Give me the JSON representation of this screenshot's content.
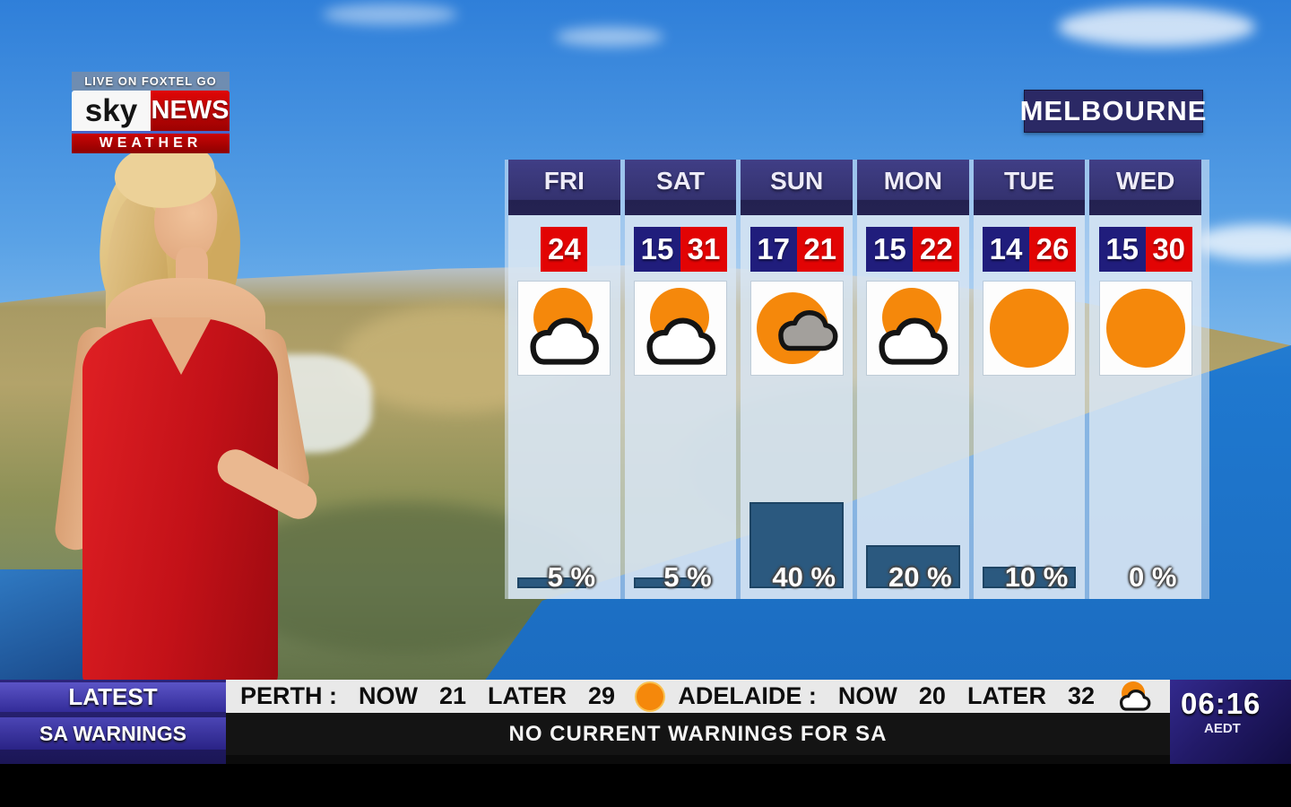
{
  "branding": {
    "live_banner": "LIVE ON FOXTEL GO",
    "logo_sky": "sky",
    "logo_news": "NEWS",
    "logo_weather": "WEATHER"
  },
  "location": "MELBOURNE",
  "forecast": {
    "days": [
      {
        "label": "FRI",
        "low": "",
        "high": "24",
        "icon": "partly-cloudy",
        "rain_label": "5 %",
        "rain_pct": 5
      },
      {
        "label": "SAT",
        "low": "15",
        "high": "31",
        "icon": "partly-cloudy",
        "rain_label": "5 %",
        "rain_pct": 5
      },
      {
        "label": "SUN",
        "low": "17",
        "high": "21",
        "icon": "sun-behind-cloud",
        "rain_label": "40 %",
        "rain_pct": 40
      },
      {
        "label": "MON",
        "low": "15",
        "high": "22",
        "icon": "partly-cloudy",
        "rain_label": "20 %",
        "rain_pct": 20
      },
      {
        "label": "TUE",
        "low": "14",
        "high": "26",
        "icon": "sunny",
        "rain_label": "10 %",
        "rain_pct": 10
      },
      {
        "label": "WED",
        "low": "15",
        "high": "30",
        "icon": "sunny",
        "rain_label": "0 %",
        "rain_pct": 0
      }
    ]
  },
  "ticker": {
    "latest": "LATEST",
    "sa_warnings": "SA WARNINGS",
    "perth": {
      "city": "PERTH :",
      "now_label": "NOW",
      "now": "21",
      "later_label": "LATER",
      "later": "29",
      "icon": "sunny"
    },
    "adelaide": {
      "city": "ADELAIDE :",
      "now_label": "NOW",
      "now": "20",
      "later_label": "LATER",
      "later": "32",
      "icon": "partly-cloudy"
    },
    "warning": "NO CURRENT WARNINGS FOR SA",
    "clock": {
      "time": "06:16",
      "tz": "AEDT"
    }
  },
  "colors": {
    "accent_red": "#e20404",
    "badge_navy": "#201d7c",
    "header_navy": "#34326f",
    "rain_bar": "#2b597f",
    "sun_orange": "#f5880b",
    "ocean_blue": "#1f78cf"
  }
}
